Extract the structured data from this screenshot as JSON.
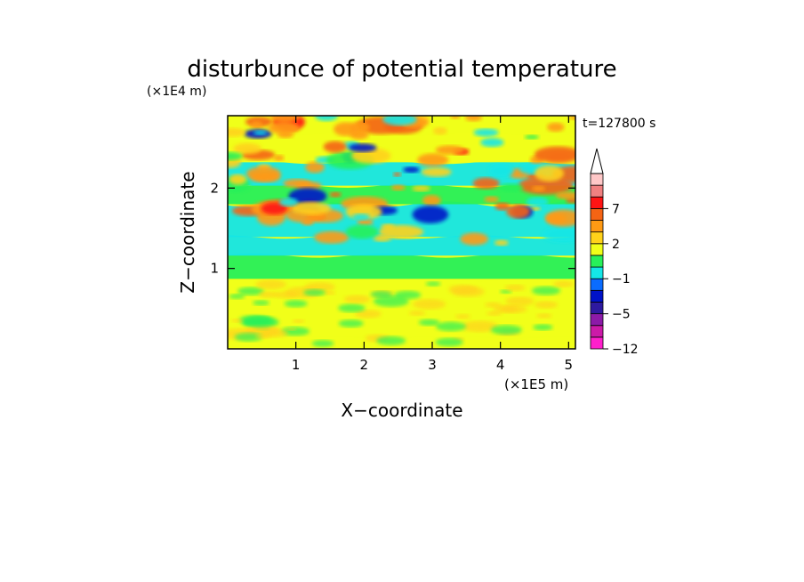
{
  "chart_data": {
    "type": "heatmap",
    "title": "disturbunce of potential temperature",
    "time_label": "t=127800 s",
    "xlabel": "X−coordinate",
    "ylabel": "Z−coordinate",
    "x_unit_label": "(×1E5 m)",
    "y_unit_label": "(×1E4 m)",
    "xlim": [
      0,
      5.1
    ],
    "ylim": [
      0,
      2.9
    ],
    "x_ticks": [
      1,
      2,
      3,
      4,
      5
    ],
    "x_tick_labels": [
      "1",
      "2",
      "3",
      "4",
      "5"
    ],
    "y_ticks": [
      1,
      2
    ],
    "y_tick_labels": [
      "1",
      "2"
    ],
    "colorbar": {
      "levels": [
        -12,
        -10,
        -8,
        -5,
        -4,
        -3,
        -1,
        0,
        1,
        2,
        3,
        5,
        7,
        9,
        11
      ],
      "colors": [
        "#ff1fcc",
        "#cc1aa8",
        "#8c1aa8",
        "#2e1aa0",
        "#0012c8",
        "#0a6cff",
        "#14e6e6",
        "#27f05a",
        "#f0ff19",
        "#ffd21a",
        "#ff9a14",
        "#f56414",
        "#ff1414",
        "#f08080",
        "#ffc8c8"
      ],
      "extend": "max",
      "tick_labels": [
        {
          "level_index": 0,
          "label": "−12"
        },
        {
          "level_index": 3,
          "label": "−5"
        },
        {
          "level_index": 6,
          "label": "−1"
        },
        {
          "level_index": 9,
          "label": "2"
        },
        {
          "level_index": 12,
          "label": "7"
        }
      ]
    }
  }
}
